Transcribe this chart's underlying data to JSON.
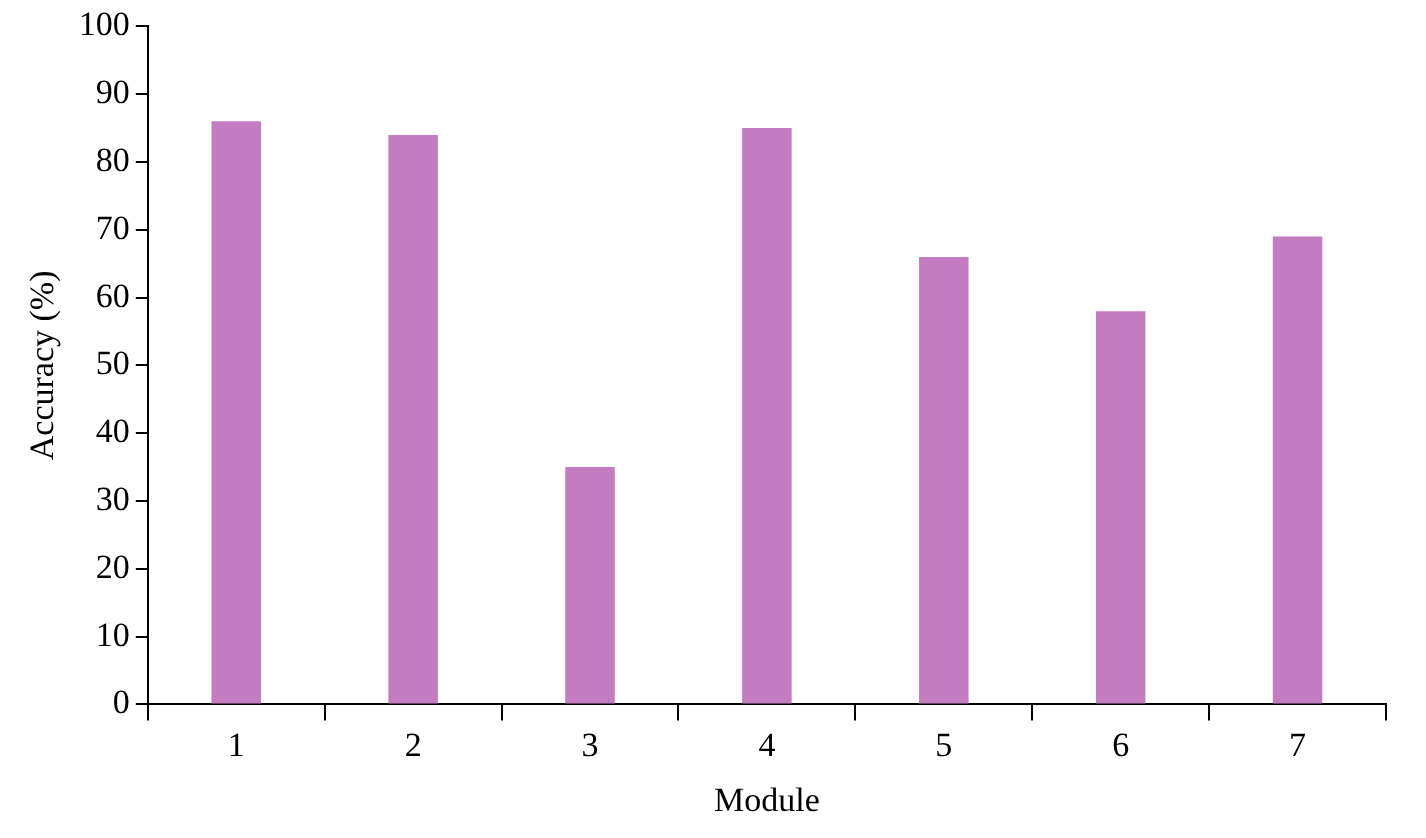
{
  "chart_data": {
    "type": "bar",
    "xlabel": "Module",
    "ylabel": "Accuracy (%)",
    "categories": [
      "1",
      "2",
      "3",
      "4",
      "5",
      "6",
      "7"
    ],
    "values": [
      86,
      84,
      35,
      85,
      66,
      58,
      69
    ],
    "color": "#c47cc0",
    "ylim": [
      0,
      100
    ],
    "yticks": [
      0,
      10,
      20,
      30,
      40,
      50,
      60,
      70,
      80,
      90,
      100
    ],
    "grid": false,
    "legend": false
  }
}
